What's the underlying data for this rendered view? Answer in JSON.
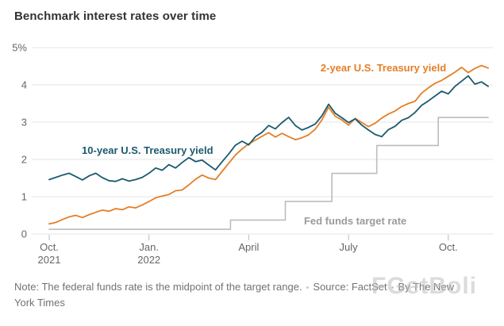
{
  "page": {
    "title": "Benchmark interest rates over time",
    "watermark": "FGetBoli"
  },
  "footer": {
    "note": "Note: The federal funds rate is the midpoint of the target range.",
    "bullet": "•",
    "source": "Source: FactSet",
    "byline": "By The New York Times"
  },
  "chart_data": {
    "type": "line",
    "title": "Benchmark interest rates over time",
    "x_unit": "months since Oct. 2021",
    "xlim": [
      0,
      13.3
    ],
    "ylim": [
      0,
      5
    ],
    "grid": true,
    "grid_color": "#e4e4e4",
    "tick_color": "#b9b9b9",
    "yticks": [
      0,
      1,
      2,
      3,
      4,
      5
    ],
    "ytick_labels": [
      "0",
      "1",
      "2",
      "3",
      "4",
      "5%"
    ],
    "xticks": [
      {
        "x": 0,
        "label": [
          "Oct.",
          "2021"
        ]
      },
      {
        "x": 3,
        "label": [
          "Jan.",
          "2022"
        ]
      },
      {
        "x": 6,
        "label": [
          "April"
        ]
      },
      {
        "x": 9,
        "label": [
          "July"
        ]
      },
      {
        "x": 12,
        "label": [
          "Oct."
        ]
      }
    ],
    "series": [
      {
        "name": "10-year U.S. Treasury yield",
        "color": "#1b5a6e",
        "width": 1.8,
        "label_pos": {
          "x": 0.98,
          "y": 2.15,
          "anchor": "start"
        },
        "points": [
          [
            0,
            1.46
          ],
          [
            0.2,
            1.52
          ],
          [
            0.4,
            1.58
          ],
          [
            0.6,
            1.63
          ],
          [
            0.8,
            1.54
          ],
          [
            1,
            1.45
          ],
          [
            1.2,
            1.56
          ],
          [
            1.4,
            1.63
          ],
          [
            1.6,
            1.51
          ],
          [
            1.8,
            1.43
          ],
          [
            2,
            1.41
          ],
          [
            2.2,
            1.48
          ],
          [
            2.4,
            1.42
          ],
          [
            2.6,
            1.46
          ],
          [
            2.8,
            1.52
          ],
          [
            3,
            1.63
          ],
          [
            3.2,
            1.77
          ],
          [
            3.4,
            1.71
          ],
          [
            3.6,
            1.86
          ],
          [
            3.8,
            1.77
          ],
          [
            4,
            1.92
          ],
          [
            4.2,
            2.05
          ],
          [
            4.4,
            1.94
          ],
          [
            4.6,
            1.98
          ],
          [
            4.8,
            1.85
          ],
          [
            5,
            1.72
          ],
          [
            5.2,
            1.94
          ],
          [
            5.4,
            2.15
          ],
          [
            5.6,
            2.38
          ],
          [
            5.8,
            2.49
          ],
          [
            6,
            2.39
          ],
          [
            6.2,
            2.61
          ],
          [
            6.4,
            2.73
          ],
          [
            6.6,
            2.91
          ],
          [
            6.8,
            2.82
          ],
          [
            7,
            2.99
          ],
          [
            7.2,
            3.13
          ],
          [
            7.4,
            2.91
          ],
          [
            7.6,
            2.79
          ],
          [
            7.8,
            2.86
          ],
          [
            8,
            2.95
          ],
          [
            8.2,
            3.17
          ],
          [
            8.4,
            3.48
          ],
          [
            8.6,
            3.24
          ],
          [
            8.8,
            3.12
          ],
          [
            9,
            2.99
          ],
          [
            9.2,
            3.09
          ],
          [
            9.4,
            2.92
          ],
          [
            9.6,
            2.79
          ],
          [
            9.8,
            2.67
          ],
          [
            10,
            2.61
          ],
          [
            10.2,
            2.8
          ],
          [
            10.4,
            2.89
          ],
          [
            10.6,
            3.05
          ],
          [
            10.8,
            3.12
          ],
          [
            11,
            3.26
          ],
          [
            11.2,
            3.45
          ],
          [
            11.4,
            3.57
          ],
          [
            11.6,
            3.7
          ],
          [
            11.8,
            3.83
          ],
          [
            12,
            3.76
          ],
          [
            12.2,
            3.96
          ],
          [
            12.4,
            4.1
          ],
          [
            12.6,
            4.24
          ],
          [
            12.8,
            4.02
          ],
          [
            13,
            4.08
          ],
          [
            13.2,
            3.96
          ]
        ]
      },
      {
        "name": "2-year U.S. Treasury yield",
        "color": "#e57e27",
        "width": 1.8,
        "label_pos": {
          "x": 8.16,
          "y": 4.36,
          "anchor": "start"
        },
        "points": [
          [
            0,
            0.27
          ],
          [
            0.2,
            0.31
          ],
          [
            0.4,
            0.39
          ],
          [
            0.6,
            0.46
          ],
          [
            0.8,
            0.5
          ],
          [
            1,
            0.44
          ],
          [
            1.2,
            0.52
          ],
          [
            1.4,
            0.58
          ],
          [
            1.6,
            0.64
          ],
          [
            1.8,
            0.61
          ],
          [
            2,
            0.68
          ],
          [
            2.2,
            0.65
          ],
          [
            2.4,
            0.73
          ],
          [
            2.6,
            0.7
          ],
          [
            2.8,
            0.78
          ],
          [
            3,
            0.87
          ],
          [
            3.2,
            0.97
          ],
          [
            3.4,
            1.02
          ],
          [
            3.6,
            1.06
          ],
          [
            3.8,
            1.16
          ],
          [
            4,
            1.18
          ],
          [
            4.2,
            1.32
          ],
          [
            4.4,
            1.47
          ],
          [
            4.6,
            1.58
          ],
          [
            4.8,
            1.5
          ],
          [
            5,
            1.46
          ],
          [
            5.2,
            1.68
          ],
          [
            5.4,
            1.9
          ],
          [
            5.6,
            2.12
          ],
          [
            5.8,
            2.28
          ],
          [
            6,
            2.42
          ],
          [
            6.2,
            2.52
          ],
          [
            6.4,
            2.62
          ],
          [
            6.6,
            2.72
          ],
          [
            6.8,
            2.6
          ],
          [
            7,
            2.7
          ],
          [
            7.2,
            2.61
          ],
          [
            7.4,
            2.53
          ],
          [
            7.6,
            2.58
          ],
          [
            7.8,
            2.66
          ],
          [
            8,
            2.81
          ],
          [
            8.2,
            3.06
          ],
          [
            8.4,
            3.4
          ],
          [
            8.6,
            3.16
          ],
          [
            8.8,
            3.06
          ],
          [
            9,
            2.92
          ],
          [
            9.2,
            3.1
          ],
          [
            9.4,
            2.99
          ],
          [
            9.6,
            2.88
          ],
          [
            9.8,
            2.97
          ],
          [
            10,
            3.11
          ],
          [
            10.2,
            3.22
          ],
          [
            10.4,
            3.3
          ],
          [
            10.6,
            3.42
          ],
          [
            10.8,
            3.5
          ],
          [
            11,
            3.56
          ],
          [
            11.2,
            3.78
          ],
          [
            11.4,
            3.92
          ],
          [
            11.6,
            4.04
          ],
          [
            11.8,
            4.12
          ],
          [
            12,
            4.23
          ],
          [
            12.2,
            4.34
          ],
          [
            12.4,
            4.47
          ],
          [
            12.6,
            4.33
          ],
          [
            12.8,
            4.44
          ],
          [
            13,
            4.52
          ],
          [
            13.2,
            4.45
          ]
        ]
      },
      {
        "name": "Fed funds target rate",
        "color": "#bcbcbc",
        "label_color": "#9b9b9b",
        "width": 1.6,
        "step": true,
        "label_pos": {
          "x": 7.66,
          "y": 0.26,
          "anchor": "start"
        },
        "points": [
          [
            0,
            0.125
          ],
          [
            5.45,
            0.125
          ],
          [
            5.45,
            0.375
          ],
          [
            7.1,
            0.375
          ],
          [
            7.1,
            0.875
          ],
          [
            8.5,
            0.875
          ],
          [
            8.5,
            1.625
          ],
          [
            9.85,
            1.625
          ],
          [
            9.85,
            2.375
          ],
          [
            11.7,
            2.375
          ],
          [
            11.7,
            3.125
          ],
          [
            13.2,
            3.125
          ]
        ]
      }
    ],
    "legend_position": "inline-labels"
  }
}
